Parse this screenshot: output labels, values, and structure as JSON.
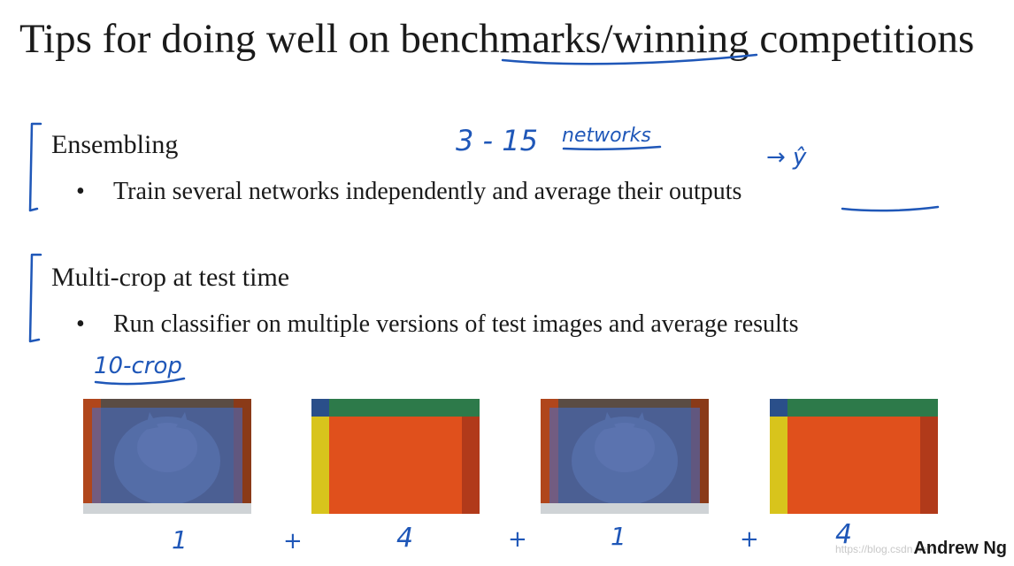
{
  "slide": {
    "title": "Tips for doing well on benchmarks/winning competitions",
    "sections": [
      {
        "heading": "Ensembling",
        "bullet": "Train several networks independently and average their outputs"
      },
      {
        "heading": "Multi-crop at test time",
        "bullet": "Run classifier on multiple versions of test images and average results"
      }
    ],
    "bullet_symbol": "•",
    "handwriting": {
      "range": "3 - 15",
      "networks": "networks",
      "yhat": "→ ŷ",
      "ten_crop": "10-crop",
      "crop_counts": [
        "1",
        "+",
        "4",
        "+",
        "1",
        "+",
        "4"
      ]
    },
    "credit": "Andrew Ng",
    "watermark": "https://blog.csdn.net/..."
  },
  "colors": {
    "ink": "#1f57b8",
    "crop_blue": "#3f6fd6",
    "crop_orange": "#e0501c",
    "crop_green": "#2d7a4a",
    "crop_yellow": "#d8c41c",
    "crop_red": "#b13a1a"
  }
}
